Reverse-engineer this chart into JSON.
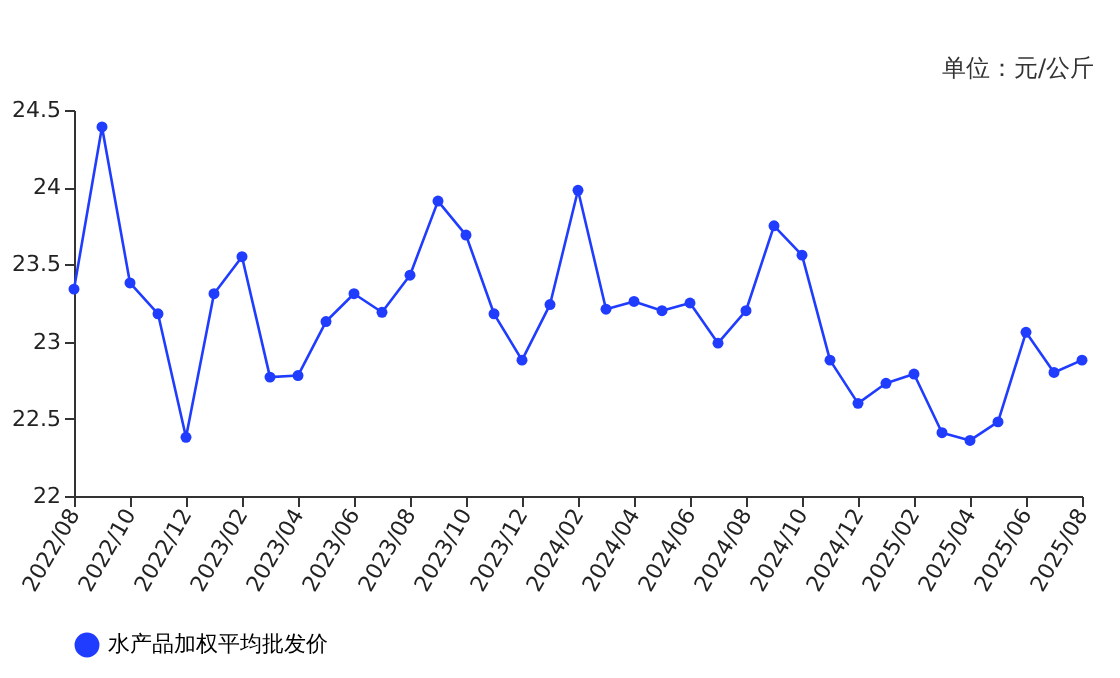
{
  "chart_data": {
    "type": "line",
    "annotations": [
      "单位：元/公斤"
    ],
    "categories": [
      "2022/08",
      null,
      "2022/10",
      null,
      "2022/12",
      null,
      "2023/02",
      null,
      "2023/04",
      null,
      "2023/06",
      null,
      "2023/08",
      null,
      "2023/10",
      null,
      "2023/12",
      null,
      "2024/02",
      null,
      "2024/04",
      null,
      "2024/06",
      null,
      "2024/08",
      null,
      "2024/10",
      null,
      "2024/12",
      null,
      "2025/02",
      null,
      "2025/04",
      null,
      "2025/06",
      null,
      "2025/08"
    ],
    "series": [
      {
        "name": "水产品加权平均批发价",
        "color": "#1f3cff",
        "values": [
          23.34,
          24.39,
          23.38,
          23.18,
          22.38,
          23.31,
          23.55,
          22.77,
          22.78,
          23.13,
          23.31,
          23.19,
          23.43,
          23.91,
          23.69,
          23.18,
          22.88,
          23.24,
          23.98,
          23.21,
          23.26,
          23.2,
          23.25,
          22.99,
          23.2,
          23.75,
          23.56,
          22.88,
          22.6,
          22.73,
          22.79,
          22.41,
          22.36,
          22.48,
          23.06,
          22.8,
          22.88
        ]
      }
    ],
    "ylim": [
      22,
      24.5
    ],
    "yticks": [
      22,
      22.5,
      23,
      23.5,
      24,
      24.5
    ],
    "grid": false,
    "legend": "bottom",
    "marker": "circle",
    "line_style": "solid"
  }
}
